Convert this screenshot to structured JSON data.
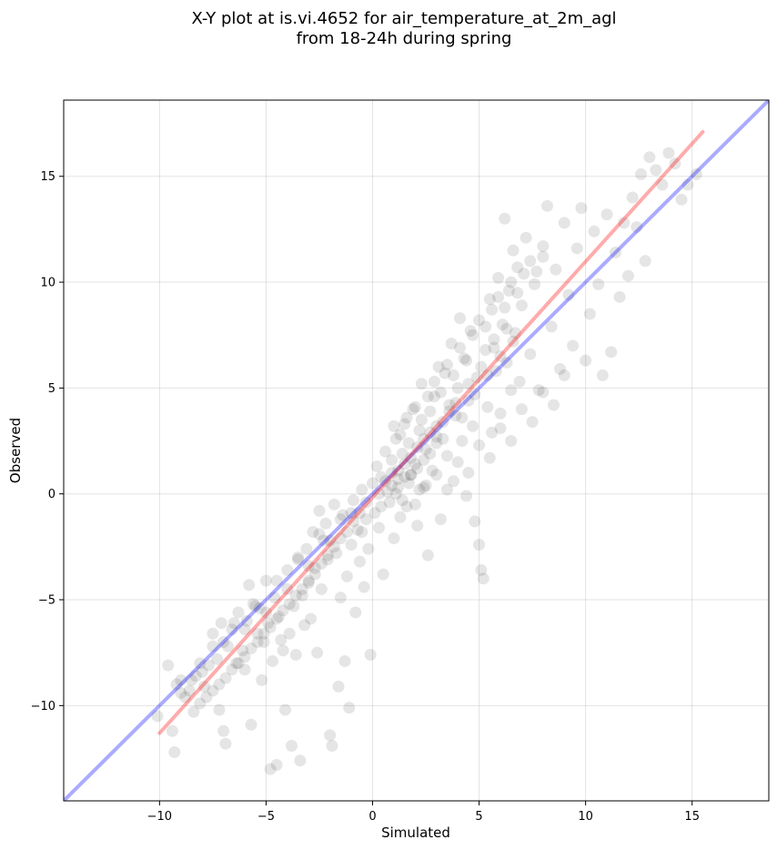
{
  "chart_data": {
    "type": "scatter",
    "title_lines": [
      "X-Y plot at is.vi.4652 for air_temperature_at_2m_agl",
      "from 18-24h during spring"
    ],
    "xlabel": "Simulated",
    "ylabel": "Observed",
    "xlim": [
      -14.5,
      18.6
    ],
    "ylim": [
      -14.5,
      18.6
    ],
    "x_ticks": [
      -10,
      -5,
      0,
      5,
      10,
      15
    ],
    "y_ticks": [
      -10,
      -5,
      0,
      5,
      10,
      15
    ],
    "tick_labels": {
      "x": [
        "−10",
        "−5",
        "0",
        "5",
        "10",
        "15"
      ],
      "y": [
        "−10",
        "−5",
        "0",
        "5",
        "10",
        "15"
      ]
    },
    "grid": true,
    "point_color": "#000000",
    "point_opacity": 0.1,
    "reference_line": {
      "color": "#0000ff",
      "from": [
        -14.5,
        -14.5
      ],
      "to": [
        18.6,
        18.6
      ]
    },
    "fit_line": {
      "color": "#ff0000",
      "from": [
        -10.0,
        -11.3
      ],
      "to": [
        15.5,
        17.1
      ]
    },
    "points": [
      [
        -10.1,
        -10.5
      ],
      [
        -9.6,
        -8.1
      ],
      [
        -9.4,
        -11.2
      ],
      [
        -9.3,
        -12.2
      ],
      [
        -9.2,
        -9.0
      ],
      [
        -9.0,
        -8.8
      ],
      [
        -8.8,
        -9.6
      ],
      [
        -8.6,
        -9.3
      ],
      [
        -8.3,
        -8.6
      ],
      [
        -8.1,
        -8.0
      ],
      [
        -7.9,
        -9.1
      ],
      [
        -7.7,
        -8.1
      ],
      [
        -7.5,
        -6.6
      ],
      [
        -7.3,
        -7.8
      ],
      [
        -7.2,
        -10.2
      ],
      [
        -7.1,
        -6.1
      ],
      [
        -7.0,
        -11.2
      ],
      [
        -6.9,
        -11.8
      ],
      [
        -6.8,
        -7.2
      ],
      [
        -6.6,
        -6.4
      ],
      [
        -6.4,
        -8.0
      ],
      [
        -6.3,
        -5.6
      ],
      [
        -6.1,
        -7.4
      ],
      [
        -6.0,
        -8.3
      ],
      [
        -5.9,
        -6.0
      ],
      [
        -5.8,
        -4.3
      ],
      [
        -5.7,
        -10.9
      ],
      [
        -5.6,
        -5.2
      ],
      [
        -5.4,
        -6.6
      ],
      [
        -5.3,
        -5.4
      ],
      [
        -5.2,
        -8.8
      ],
      [
        -5.1,
        -7.0
      ],
      [
        -5.0,
        -4.1
      ],
      [
        -4.9,
        -6.1
      ],
      [
        -4.8,
        -13.0
      ],
      [
        -4.7,
        -7.9
      ],
      [
        -4.6,
        -4.9
      ],
      [
        -4.5,
        -12.8
      ],
      [
        -4.4,
        -5.8
      ],
      [
        -4.3,
        -6.9
      ],
      [
        -4.2,
        -7.4
      ],
      [
        -4.1,
        -10.2
      ],
      [
        -4.0,
        -3.6
      ],
      [
        -3.9,
        -6.6
      ],
      [
        -3.8,
        -11.9
      ],
      [
        -3.7,
        -5.3
      ],
      [
        -3.6,
        -7.6
      ],
      [
        -3.5,
        -3.0
      ],
      [
        -3.4,
        -12.6
      ],
      [
        -3.3,
        -4.8
      ],
      [
        -3.2,
        -6.2
      ],
      [
        -3.1,
        -2.6
      ],
      [
        -3.0,
        -4.2
      ],
      [
        -2.9,
        -5.9
      ],
      [
        -2.8,
        -1.8
      ],
      [
        -2.7,
        -3.5
      ],
      [
        -2.6,
        -7.5
      ],
      [
        -2.5,
        -0.8
      ],
      [
        -2.4,
        -4.5
      ],
      [
        -2.3,
        -2.2
      ],
      [
        -2.2,
        -1.4
      ],
      [
        -2.1,
        -3.1
      ],
      [
        -2.0,
        -11.4
      ],
      [
        -1.9,
        -11.9
      ],
      [
        -1.8,
        -0.5
      ],
      [
        -1.7,
        -2.8
      ],
      [
        -1.6,
        -9.1
      ],
      [
        -1.5,
        -4.9
      ],
      [
        -1.4,
        -1.0
      ],
      [
        -1.3,
        -7.9
      ],
      [
        -1.2,
        -3.9
      ],
      [
        -1.1,
        -10.1
      ],
      [
        -1.0,
        -2.4
      ],
      [
        -0.9,
        -0.3
      ],
      [
        -0.8,
        -5.6
      ],
      [
        -0.7,
        -1.7
      ],
      [
        -0.6,
        -3.2
      ],
      [
        -0.5,
        0.2
      ],
      [
        -0.4,
        -4.4
      ],
      [
        -0.3,
        -1.2
      ],
      [
        -0.2,
        -2.6
      ],
      [
        -0.1,
        -7.6
      ],
      [
        0.0,
        0.5
      ],
      [
        0.1,
        -0.9
      ],
      [
        0.2,
        1.3
      ],
      [
        0.3,
        -1.6
      ],
      [
        0.4,
        0.8
      ],
      [
        0.5,
        -3.8
      ],
      [
        0.6,
        2.0
      ],
      [
        0.7,
        0.1
      ],
      [
        0.8,
        -0.4
      ],
      [
        0.9,
        1.6
      ],
      [
        1.0,
        -2.1
      ],
      [
        1.1,
        2.6
      ],
      [
        1.2,
        0.7
      ],
      [
        1.3,
        -1.1
      ],
      [
        1.4,
        1.9
      ],
      [
        1.5,
        3.3
      ],
      [
        1.6,
        -0.6
      ],
      [
        1.7,
        2.4
      ],
      [
        1.8,
        0.9
      ],
      [
        1.9,
        4.0
      ],
      [
        2.0,
        1.4
      ],
      [
        2.1,
        -1.5
      ],
      [
        2.2,
        3.0
      ],
      [
        2.3,
        5.2
      ],
      [
        2.4,
        0.3
      ],
      [
        2.5,
        2.1
      ],
      [
        2.6,
        -2.9
      ],
      [
        2.7,
        3.9
      ],
      [
        2.8,
        1.1
      ],
      [
        2.9,
        4.6
      ],
      [
        3.0,
        2.7
      ],
      [
        3.1,
        6.0
      ],
      [
        3.2,
        -1.2
      ],
      [
        3.3,
        3.4
      ],
      [
        3.4,
        5.7
      ],
      [
        3.5,
        1.8
      ],
      [
        3.6,
        4.2
      ],
      [
        3.7,
        7.1
      ],
      [
        3.8,
        0.6
      ],
      [
        3.9,
        3.7
      ],
      [
        4.0,
        5.0
      ],
      [
        4.1,
        8.3
      ],
      [
        4.2,
        2.5
      ],
      [
        4.3,
        6.4
      ],
      [
        4.4,
        -0.1
      ],
      [
        4.5,
        4.4
      ],
      [
        4.6,
        7.7
      ],
      [
        4.7,
        3.2
      ],
      [
        4.8,
        -1.3
      ],
      [
        4.9,
        5.5
      ],
      [
        5.0,
        -2.4
      ],
      [
        5.1,
        -3.6
      ],
      [
        5.2,
        -4.0
      ],
      [
        5.3,
        6.8
      ],
      [
        5.4,
        4.1
      ],
      [
        5.5,
        9.2
      ],
      [
        5.6,
        2.9
      ],
      [
        5.7,
        7.3
      ],
      [
        5.8,
        5.8
      ],
      [
        5.9,
        10.2
      ],
      [
        6.0,
        3.8
      ],
      [
        6.1,
        8.0
      ],
      [
        6.2,
        13.0
      ],
      [
        6.3,
        6.2
      ],
      [
        6.4,
        9.6
      ],
      [
        6.5,
        4.9
      ],
      [
        6.6,
        11.5
      ],
      [
        6.7,
        7.6
      ],
      [
        6.8,
        10.7
      ],
      [
        6.9,
        5.3
      ],
      [
        7.0,
        8.9
      ],
      [
        7.2,
        12.1
      ],
      [
        7.4,
        6.6
      ],
      [
        7.6,
        9.9
      ],
      [
        7.8,
        4.9
      ],
      [
        8.0,
        11.2
      ],
      [
        8.2,
        13.6
      ],
      [
        8.4,
        7.9
      ],
      [
        8.6,
        10.6
      ],
      [
        8.8,
        5.9
      ],
      [
        9.0,
        12.8
      ],
      [
        9.2,
        9.4
      ],
      [
        9.4,
        7.0
      ],
      [
        9.6,
        11.6
      ],
      [
        9.8,
        13.5
      ],
      [
        10.0,
        6.3
      ],
      [
        10.2,
        8.5
      ],
      [
        10.4,
        12.4
      ],
      [
        10.6,
        9.9
      ],
      [
        10.8,
        5.6
      ],
      [
        11.0,
        13.2
      ],
      [
        11.2,
        6.7
      ],
      [
        11.4,
        11.4
      ],
      [
        11.6,
        9.3
      ],
      [
        11.8,
        12.8
      ],
      [
        12.0,
        10.3
      ],
      [
        12.2,
        14.0
      ],
      [
        12.4,
        12.6
      ],
      [
        12.6,
        15.1
      ],
      [
        12.8,
        11.0
      ],
      [
        13.0,
        15.9
      ],
      [
        13.3,
        15.3
      ],
      [
        13.6,
        14.6
      ],
      [
        13.9,
        16.1
      ],
      [
        14.2,
        15.6
      ],
      [
        14.5,
        13.9
      ],
      [
        14.8,
        14.6
      ],
      [
        15.2,
        15.1
      ],
      [
        0.9,
        0.4
      ],
      [
        1.2,
        1.1
      ],
      [
        1.5,
        0.8
      ],
      [
        1.8,
        1.7
      ],
      [
        2.1,
        2.2
      ],
      [
        2.4,
        1.6
      ],
      [
        2.7,
        2.9
      ],
      [
        3.0,
        3.2
      ],
      [
        3.3,
        2.6
      ],
      [
        3.6,
        3.9
      ],
      [
        3.9,
        4.3
      ],
      [
        4.2,
        3.6
      ],
      [
        4.5,
        5.2
      ],
      [
        4.8,
        4.7
      ],
      [
        5.1,
        6.0
      ],
      [
        5.4,
        5.6
      ],
      [
        5.7,
        6.9
      ],
      [
        6.0,
        6.5
      ],
      [
        6.3,
        7.8
      ],
      [
        6.6,
        7.2
      ],
      [
        0.3,
        0.0
      ],
      [
        0.6,
        0.6
      ],
      [
        0.9,
        1.0
      ],
      [
        1.2,
        0.3
      ],
      [
        1.5,
        1.4
      ],
      [
        1.8,
        0.9
      ],
      [
        2.1,
        1.2
      ],
      [
        2.4,
        2.6
      ],
      [
        2.7,
        1.9
      ],
      [
        3.0,
        2.4
      ],
      [
        -0.3,
        -0.4
      ],
      [
        -0.6,
        -0.9
      ],
      [
        -0.9,
        -1.3
      ],
      [
        -1.2,
        -1.8
      ],
      [
        -1.5,
        -2.1
      ],
      [
        -1.8,
        -2.5
      ],
      [
        -2.1,
        -2.9
      ],
      [
        -2.4,
        -3.3
      ],
      [
        -2.7,
        -3.8
      ],
      [
        -3.0,
        -4.1
      ],
      [
        -3.3,
        -4.5
      ],
      [
        -3.6,
        -4.8
      ],
      [
        -3.9,
        -5.2
      ],
      [
        -4.2,
        -5.5
      ],
      [
        -4.5,
        -5.9
      ],
      [
        -4.8,
        -6.3
      ],
      [
        -5.1,
        -6.6
      ],
      [
        -5.4,
        -7.0
      ],
      [
        -5.7,
        -7.3
      ],
      [
        -6.0,
        -7.7
      ],
      [
        -6.3,
        -8.0
      ],
      [
        -6.6,
        -8.3
      ],
      [
        -6.9,
        -8.7
      ],
      [
        -7.2,
        -9.0
      ],
      [
        -7.5,
        -9.3
      ],
      [
        -7.8,
        -9.6
      ],
      [
        -8.1,
        -9.9
      ],
      [
        -8.4,
        -10.3
      ],
      [
        -0.5,
        -1.8
      ],
      [
        -1.0,
        -0.9
      ],
      [
        -1.5,
        -1.2
      ],
      [
        -2.0,
        -2.2
      ],
      [
        -2.5,
        -1.9
      ],
      [
        -3.0,
        -3.4
      ],
      [
        -3.5,
        -3.1
      ],
      [
        -4.0,
        -4.5
      ],
      [
        -4.5,
        -4.1
      ],
      [
        -5.0,
        -5.6
      ],
      [
        -5.5,
        -5.3
      ],
      [
        -6.0,
        -6.4
      ],
      [
        -6.5,
        -6.1
      ],
      [
        -7.0,
        -7.0
      ],
      [
        -7.5,
        -7.2
      ],
      [
        -8.0,
        -8.4
      ],
      [
        -8.5,
        -8.8
      ],
      [
        -9.0,
        -9.4
      ],
      [
        1.0,
        3.2
      ],
      [
        1.3,
        2.8
      ],
      [
        1.6,
        3.6
      ],
      [
        2.0,
        4.1
      ],
      [
        2.3,
        3.5
      ],
      [
        2.6,
        4.6
      ],
      [
        2.9,
        5.3
      ],
      [
        3.2,
        4.8
      ],
      [
        3.5,
        6.1
      ],
      [
        3.8,
        5.6
      ],
      [
        4.1,
        6.9
      ],
      [
        4.4,
        6.3
      ],
      [
        4.7,
        7.5
      ],
      [
        5.0,
        8.2
      ],
      [
        5.3,
        7.9
      ],
      [
        5.6,
        8.7
      ],
      [
        5.9,
        9.3
      ],
      [
        6.2,
        8.8
      ],
      [
        6.5,
        10.0
      ],
      [
        6.8,
        9.5
      ],
      [
        7.1,
        10.4
      ],
      [
        7.4,
        11.0
      ],
      [
        7.7,
        10.5
      ],
      [
        8.0,
        11.7
      ],
      [
        2.0,
        -0.5
      ],
      [
        2.5,
        0.4
      ],
      [
        3.0,
        0.9
      ],
      [
        3.5,
        0.2
      ],
      [
        4.0,
        1.5
      ],
      [
        4.5,
        1.0
      ],
      [
        5.0,
        2.3
      ],
      [
        5.5,
        1.7
      ],
      [
        6.0,
        3.1
      ],
      [
        6.5,
        2.5
      ],
      [
        7.0,
        4.0
      ],
      [
        7.5,
        3.4
      ],
      [
        8.0,
        4.8
      ],
      [
        8.5,
        4.2
      ],
      [
        9.0,
        5.6
      ],
      [
        1.1,
        0.0
      ],
      [
        1.4,
        -0.3
      ],
      [
        1.7,
        0.5
      ],
      [
        2.2,
        0.2
      ],
      [
        0.4,
        -0.6
      ]
    ]
  }
}
